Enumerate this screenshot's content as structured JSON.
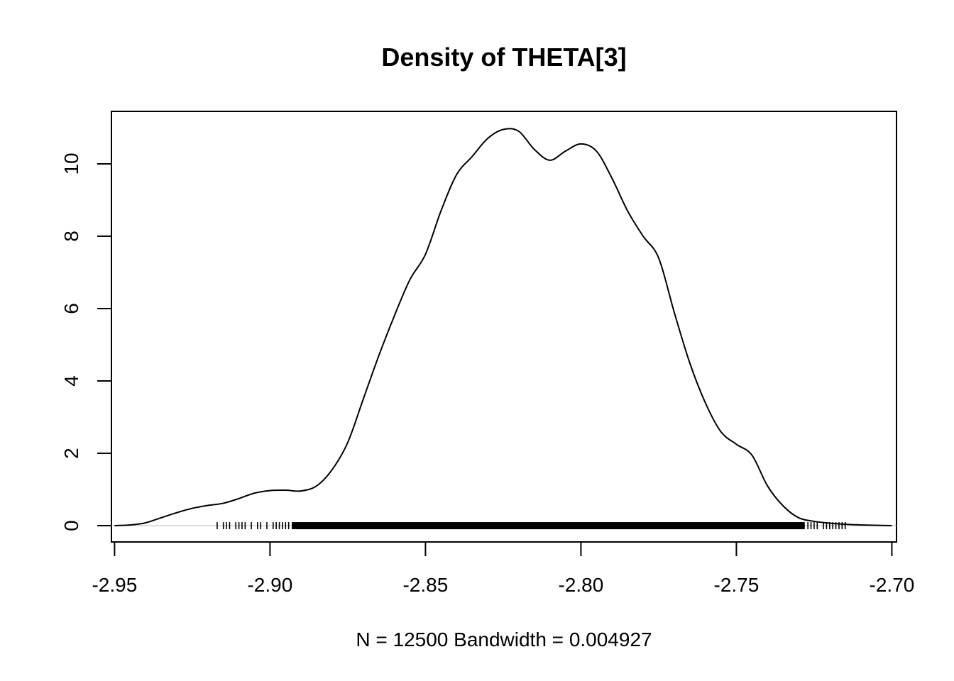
{
  "chart_data": {
    "type": "line",
    "title": "Density of THETA[3]",
    "xlabel": "N = 12500   Bandwidth = 0.004927",
    "ylabel": "",
    "xlim": [
      -2.951,
      -2.6985
    ],
    "ylim": [
      -0.45,
      11.45
    ],
    "x_ticks": [
      -2.95,
      -2.9,
      -2.85,
      -2.8,
      -2.75,
      -2.7
    ],
    "x_tick_labels": [
      "-2.95",
      "-2.90",
      "-2.85",
      "-2.80",
      "-2.75",
      "-2.70"
    ],
    "y_ticks": [
      0,
      2,
      4,
      6,
      8,
      10
    ],
    "y_tick_labels": [
      "0",
      "2",
      "4",
      "6",
      "8",
      "10"
    ],
    "grid": false,
    "legend": "none",
    "line_color": "#000000",
    "series": [
      {
        "x": [
          -2.95,
          -2.945,
          -2.94,
          -2.935,
          -2.93,
          -2.925,
          -2.92,
          -2.915,
          -2.91,
          -2.905,
          -2.9,
          -2.895,
          -2.89,
          -2.885,
          -2.88,
          -2.875,
          -2.87,
          -2.865,
          -2.86,
          -2.855,
          -2.85,
          -2.845,
          -2.84,
          -2.835,
          -2.83,
          -2.825,
          -2.82,
          -2.815,
          -2.81,
          -2.805,
          -2.8,
          -2.795,
          -2.79,
          -2.785,
          -2.78,
          -2.775,
          -2.77,
          -2.765,
          -2.76,
          -2.755,
          -2.75,
          -2.745,
          -2.74,
          -2.735,
          -2.73,
          -2.725,
          -2.72,
          -2.715,
          -2.71,
          -2.705,
          -2.7
        ],
        "y": [
          0.0,
          0.02,
          0.08,
          0.22,
          0.36,
          0.48,
          0.56,
          0.62,
          0.75,
          0.9,
          0.97,
          0.98,
          0.96,
          1.1,
          1.55,
          2.3,
          3.5,
          4.7,
          5.8,
          6.8,
          7.5,
          8.7,
          9.7,
          10.2,
          10.7,
          10.95,
          10.9,
          10.4,
          10.1,
          10.35,
          10.55,
          10.35,
          9.6,
          8.7,
          8.0,
          7.4,
          5.9,
          4.5,
          3.4,
          2.6,
          2.25,
          1.95,
          1.1,
          0.55,
          0.22,
          0.12,
          0.07,
          0.04,
          0.02,
          0.01,
          0.0
        ]
      }
    ],
    "rug": {
      "from": -2.917,
      "to": -2.715,
      "dense_from": -2.893,
      "dense_to": -2.728,
      "sparse_left": [
        -2.917,
        -2.915,
        -2.914,
        -2.913,
        -2.911,
        -2.91,
        -2.909,
        -2.908,
        -2.906,
        -2.904,
        -2.903,
        -2.901,
        -2.899,
        -2.898,
        -2.897,
        -2.896,
        -2.895,
        -2.894
      ],
      "sparse_right": [
        -2.727,
        -2.726,
        -2.725,
        -2.724,
        -2.722,
        -2.721,
        -2.72,
        -2.719,
        -2.718,
        -2.717,
        -2.716,
        -2.715
      ]
    }
  }
}
